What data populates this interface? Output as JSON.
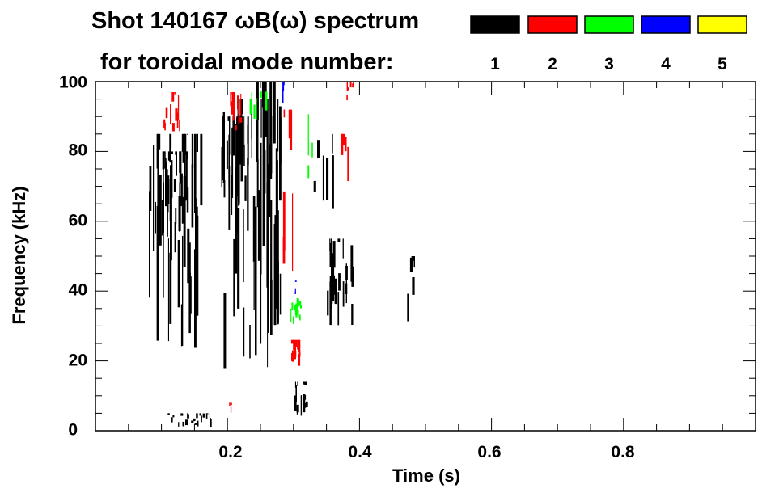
{
  "chart_data": {
    "type": "heatmap",
    "title": "Shot 140167 ωB(ω) spectrum",
    "subtitle": "for toroidal mode number:",
    "xlabel": "Time (s)",
    "ylabel": "Frequency (kHz)",
    "xlim": [
      0.0,
      1.0
    ],
    "ylim": [
      0,
      100
    ],
    "x_ticks": [
      0.2,
      0.4,
      0.6,
      0.8
    ],
    "x_tick_labels": [
      "0.2",
      "0.4",
      "0.6",
      "0.8"
    ],
    "y_ticks": [
      0,
      20,
      40,
      60,
      80,
      100
    ],
    "y_tick_labels": [
      "0",
      "20",
      "40",
      "60",
      "80",
      "100"
    ],
    "legend": [
      {
        "label": "1",
        "color": "#000000"
      },
      {
        "label": "2",
        "color": "#ff0000"
      },
      {
        "label": "3",
        "color": "#00ff00"
      },
      {
        "label": "4",
        "color": "#0000ff"
      },
      {
        "label": "5",
        "color": "#ffff00"
      }
    ],
    "regions": [
      {
        "mode": 1,
        "t": [
          0.08,
          0.16
        ],
        "f": [
          20,
          85
        ],
        "density": 0.55
      },
      {
        "mode": 1,
        "t": [
          0.1,
          0.14
        ],
        "f": [
          55,
          80
        ],
        "density": 0.8
      },
      {
        "mode": 1,
        "t": [
          0.19,
          0.23
        ],
        "f": [
          55,
          90
        ],
        "density": 0.85
      },
      {
        "mode": 1,
        "t": [
          0.19,
          0.28
        ],
        "f": [
          15,
          95
        ],
        "density": 0.4
      },
      {
        "mode": 1,
        "t": [
          0.24,
          0.28
        ],
        "f": [
          20,
          100
        ],
        "density": 0.45
      },
      {
        "mode": 1,
        "t": [
          0.3,
          0.32
        ],
        "f": [
          4,
          14
        ],
        "density": 0.8
      },
      {
        "mode": 1,
        "t": [
          0.33,
          0.36
        ],
        "f": [
          60,
          85
        ],
        "density": 0.25
      },
      {
        "mode": 1,
        "t": [
          0.35,
          0.39
        ],
        "f": [
          30,
          55
        ],
        "density": 0.55
      },
      {
        "mode": 1,
        "t": [
          0.47,
          0.485
        ],
        "f": [
          30,
          50
        ],
        "density": 0.35
      },
      {
        "mode": 1,
        "t": [
          0.1,
          0.18
        ],
        "f": [
          1,
          5
        ],
        "density": 0.3
      },
      {
        "mode": 2,
        "t": [
          0.1,
          0.13
        ],
        "f": [
          85,
          97
        ],
        "density": 0.4
      },
      {
        "mode": 2,
        "t": [
          0.2,
          0.22
        ],
        "f": [
          86,
          97
        ],
        "density": 0.8
      },
      {
        "mode": 2,
        "t": [
          0.28,
          0.3
        ],
        "f": [
          45,
          92
        ],
        "density": 0.3
      },
      {
        "mode": 2,
        "t": [
          0.295,
          0.31
        ],
        "f": [
          18,
          26
        ],
        "density": 0.85
      },
      {
        "mode": 2,
        "t": [
          0.37,
          0.39
        ],
        "f": [
          65,
          85
        ],
        "density": 0.25
      },
      {
        "mode": 2,
        "t": [
          0.38,
          0.39
        ],
        "f": [
          94,
          100
        ],
        "density": 0.6
      },
      {
        "mode": 2,
        "t": [
          0.2,
          0.205
        ],
        "f": [
          4,
          8
        ],
        "density": 0.7
      },
      {
        "mode": 3,
        "t": [
          0.295,
          0.31
        ],
        "f": [
          30,
          38
        ],
        "density": 0.85
      },
      {
        "mode": 3,
        "t": [
          0.23,
          0.26
        ],
        "f": [
          85,
          100
        ],
        "density": 0.2
      },
      {
        "mode": 3,
        "t": [
          0.32,
          0.34
        ],
        "f": [
          70,
          95
        ],
        "density": 0.15
      },
      {
        "mode": 4,
        "t": [
          0.3,
          0.305
        ],
        "f": [
          39,
          43
        ],
        "density": 0.7
      },
      {
        "mode": 4,
        "t": [
          0.28,
          0.285
        ],
        "f": [
          93,
          100
        ],
        "density": 0.5
      }
    ]
  }
}
